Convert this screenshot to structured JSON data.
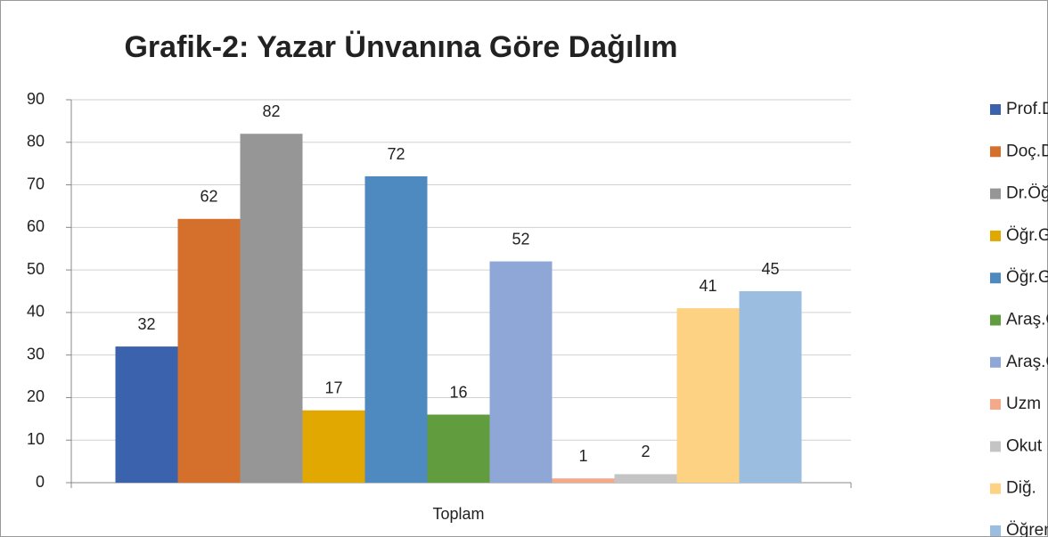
{
  "chart_data": {
    "type": "bar",
    "title": "Grafik-2: Yazar Ünvanına Göre Dağılım",
    "categories": [
      "Toplam"
    ],
    "series": [
      {
        "name": "Prof.Dr.",
        "color": "#3a62ad",
        "values": [
          32
        ]
      },
      {
        "name": "Doç.Dr",
        "color": "#d4702c",
        "values": [
          62
        ]
      },
      {
        "name": "Dr.Öğr.Üyesi",
        "color": "#969696",
        "values": [
          82
        ]
      },
      {
        "name": "Öğr.Gör.Dr",
        "color": "#e0a800",
        "values": [
          17
        ]
      },
      {
        "name": "Öğr.Gör",
        "color": "#4e89c0",
        "values": [
          72
        ]
      },
      {
        "name": "Araş.Gör",
        "color": "#619c3e",
        "values": [
          16
        ]
      },
      {
        "name": "Araş.Gör.Dr",
        "color": "#8fa7d6",
        "values": [
          52
        ]
      },
      {
        "name": "Uzm",
        "color": "#f4a98a",
        "values": [
          1
        ]
      },
      {
        "name": "Okut",
        "color": "#c4c4c4",
        "values": [
          2
        ]
      },
      {
        "name": "Diğ.",
        "color": "#fdd282",
        "values": [
          41
        ]
      },
      {
        "name": "Öğrenci",
        "color": "#9bbde0",
        "values": [
          45
        ]
      }
    ],
    "ylim": [
      0,
      90
    ],
    "yticks": [
      0,
      10,
      20,
      30,
      40,
      50,
      60,
      70,
      80,
      90
    ],
    "grid": true,
    "legend": "right"
  }
}
